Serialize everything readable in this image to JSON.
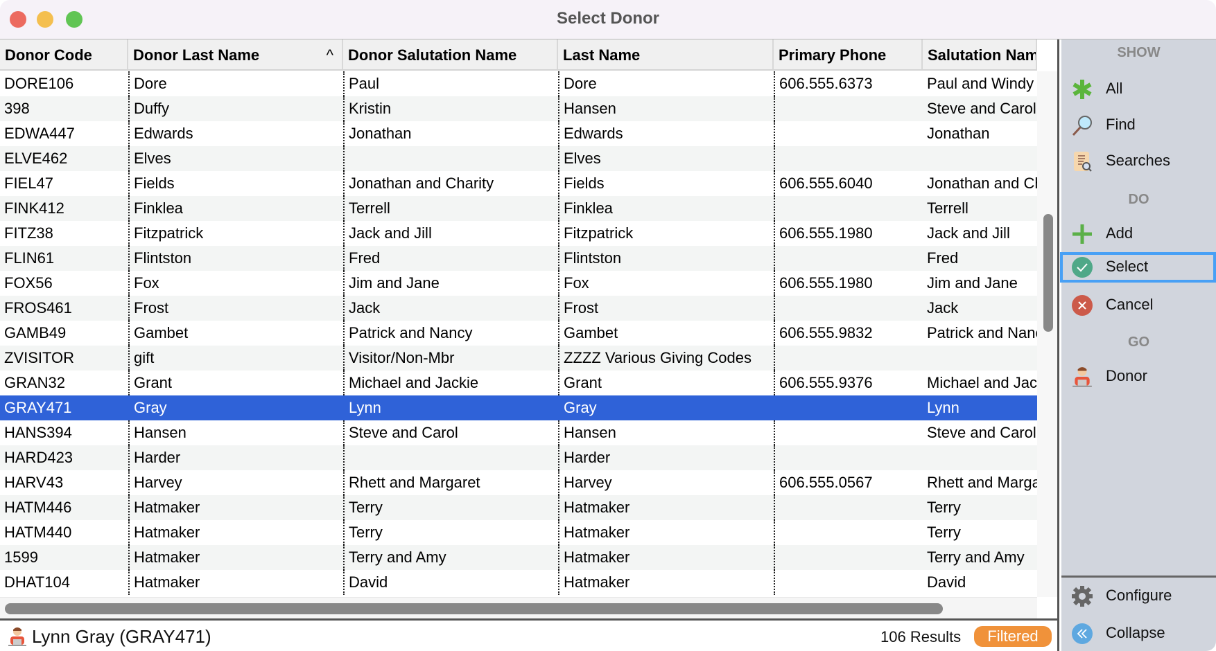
{
  "window": {
    "title": "Select Donor"
  },
  "colors": {
    "selected_row": "#2f62d8",
    "badge": "#f0923a",
    "focus": "#48a0f5"
  },
  "columns": [
    "Donor Code",
    "Donor Last Name",
    "Donor Salutation Name",
    "Last Name",
    "Primary Phone",
    "Salutation Name"
  ],
  "sort_indicator": "^",
  "rows": [
    [
      "DORE106",
      "Dore",
      "Paul",
      "Dore",
      "606.555.6373",
      "Paul and Windy"
    ],
    [
      "398",
      "Duffy",
      "Kristin",
      "Hansen",
      "",
      "Steve and Carol"
    ],
    [
      "EDWA447",
      "Edwards",
      "Jonathan",
      "Edwards",
      "",
      "Jonathan"
    ],
    [
      "ELVE462",
      "Elves",
      "",
      "Elves",
      "",
      ""
    ],
    [
      "FIEL47",
      "Fields",
      "Jonathan and Charity",
      "Fields",
      "606.555.6040",
      "Jonathan and Charity"
    ],
    [
      "FINK412",
      "Finklea",
      "Terrell",
      "Finklea",
      "",
      "Terrell"
    ],
    [
      "FITZ38",
      "Fitzpatrick",
      "Jack and Jill",
      "Fitzpatrick",
      "606.555.1980",
      "Jack and Jill"
    ],
    [
      "FLIN61",
      "Flintston",
      "Fred",
      "Flintston",
      "",
      "Fred"
    ],
    [
      "FOX56",
      "Fox",
      "Jim and Jane",
      "Fox",
      "606.555.1980",
      "Jim and Jane"
    ],
    [
      "FROS461",
      "Frost",
      "Jack",
      "Frost",
      "",
      "Jack"
    ],
    [
      "GAMB49",
      "Gambet",
      "Patrick and Nancy",
      "Gambet",
      "606.555.9832",
      "Patrick and Nancy"
    ],
    [
      "ZVISITOR",
      "gift",
      "Visitor/Non-Mbr",
      "ZZZZ Various Giving Codes",
      "",
      ""
    ],
    [
      "GRAN32",
      "Grant",
      "Michael and Jackie",
      "Grant",
      "606.555.9376",
      "Michael and Jackie"
    ],
    [
      "GRAY471",
      "Gray",
      "Lynn",
      "Gray",
      "",
      "Lynn"
    ],
    [
      "HANS394",
      "Hansen",
      "Steve and Carol",
      "Hansen",
      "",
      "Steve and Carol"
    ],
    [
      "HARD423",
      "Harder",
      "",
      "Harder",
      "",
      ""
    ],
    [
      "HARV43",
      "Harvey",
      "Rhett and Margaret",
      "Harvey",
      "606.555.0567",
      "Rhett and Margaret"
    ],
    [
      "HATM446",
      "Hatmaker",
      "Terry",
      "Hatmaker",
      "",
      "Terry"
    ],
    [
      "HATM440",
      "Hatmaker",
      "Terry",
      "Hatmaker",
      "",
      "Terry"
    ],
    [
      "1599",
      "Hatmaker",
      "Terry and Amy",
      "Hatmaker",
      "",
      "Terry and Amy"
    ],
    [
      "DHAT104",
      "Hatmaker",
      "David",
      "Hatmaker",
      "",
      "David"
    ]
  ],
  "selected_index": 13,
  "status": {
    "current": "Lynn Gray (GRAY471)",
    "results": "106 Results",
    "badge": "Filtered"
  },
  "sidebar": {
    "show": "SHOW",
    "do": "DO",
    "go": "GO",
    "all": "All",
    "find": "Find",
    "searches": "Searches",
    "add": "Add",
    "select": "Select",
    "cancel": "Cancel",
    "donor": "Donor",
    "configure": "Configure",
    "collapse": "Collapse"
  }
}
